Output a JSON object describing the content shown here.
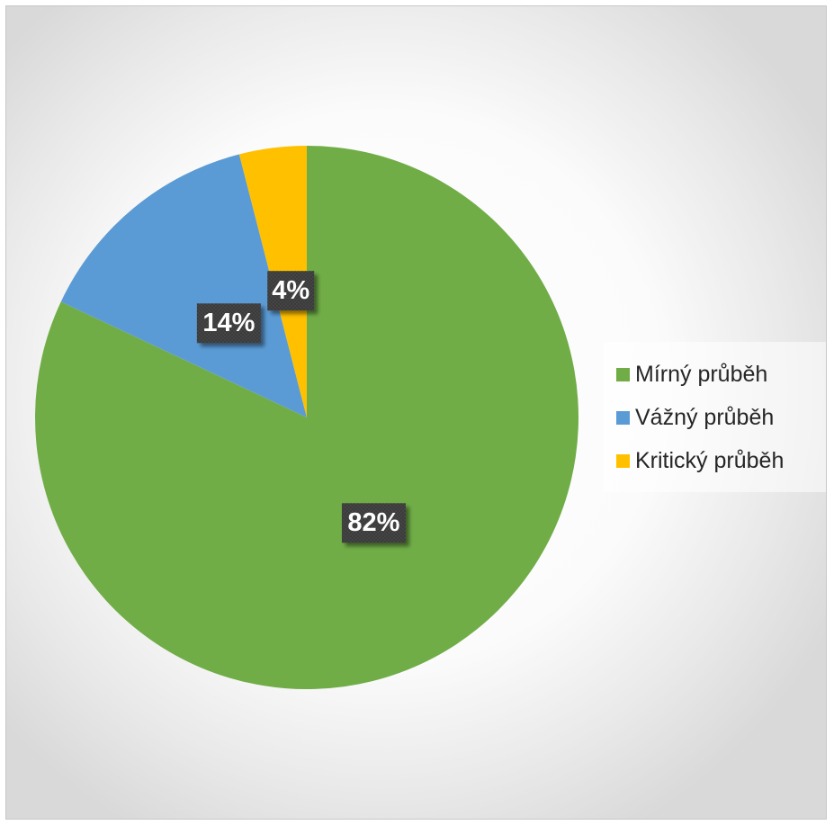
{
  "chart_data": {
    "type": "pie",
    "title": "",
    "categories": [
      "Mírný průběh",
      "Vážný průběh",
      "Kritický průběh"
    ],
    "values": [
      82,
      14,
      4
    ],
    "labels": [
      "82%",
      "14%",
      "4%"
    ],
    "colors": [
      "#70AD47",
      "#5B9BD5",
      "#FFC000"
    ],
    "start_angle": "12 o'clock",
    "direction": "clockwise",
    "legend_position": "right"
  },
  "legend": {
    "items": [
      {
        "label": "Mírný průběh",
        "color": "#70AD47"
      },
      {
        "label": "Vážný průběh",
        "color": "#5B9BD5"
      },
      {
        "label": "Kritický průběh",
        "color": "#FFC000"
      }
    ]
  }
}
